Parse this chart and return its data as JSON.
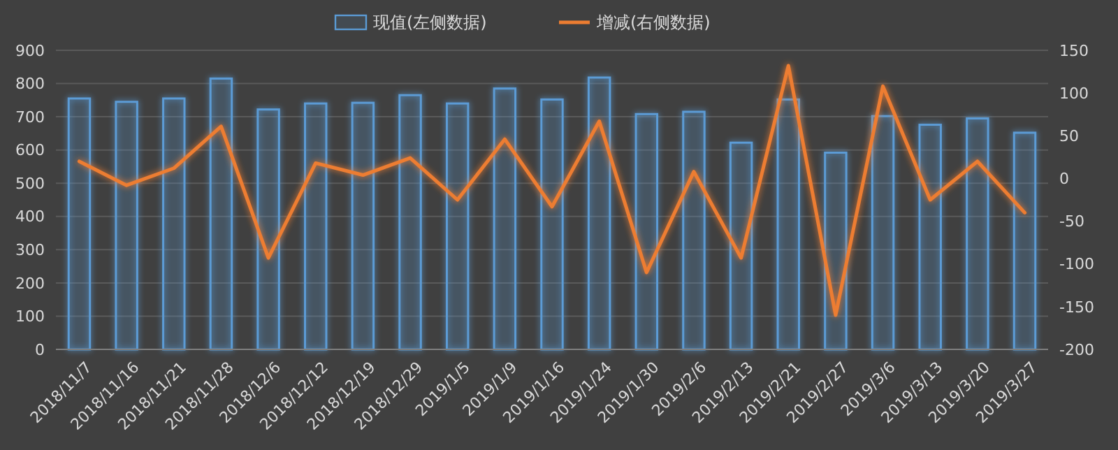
{
  "chart_data": {
    "type": "bar",
    "categories": [
      "2018/11/7",
      "2018/11/16",
      "2018/11/21",
      "2018/11/28",
      "2018/12/6",
      "2018/12/12",
      "2018/12/19",
      "2018/12/29",
      "2019/1/5",
      "2019/1/9",
      "2019/1/16",
      "2019/1/24",
      "2019/1/30",
      "2019/2/6",
      "2019/2/13",
      "2019/2/21",
      "2019/2/27",
      "2019/3/6",
      "2019/3/13",
      "2019/3/20",
      "2019/3/27"
    ],
    "series": [
      {
        "name": "现值(左侧数据)",
        "color": "#5b9bd5",
        "values": [
          755,
          745,
          755,
          815,
          722,
          740,
          742,
          765,
          740,
          785,
          752,
          818,
          708,
          715,
          622,
          752,
          592,
          702,
          676,
          695,
          652
        ]
      },
      {
        "name": "增减(右侧数据)",
        "type": "line",
        "axis": "y2",
        "color": "#ed7d31",
        "values": [
          20,
          -8,
          12,
          61,
          -93,
          18,
          4,
          24,
          -25,
          46,
          -33,
          67,
          -110,
          8,
          -93,
          132,
          -160,
          108,
          -25,
          20,
          -40
        ]
      }
    ],
    "ylim": [
      0,
      900
    ],
    "yticks": [
      0,
      100,
      200,
      300,
      400,
      500,
      600,
      700,
      800,
      900
    ],
    "y2lim": [
      -200,
      150
    ],
    "y2ticks": [
      -200,
      -150,
      -100,
      -50,
      0,
      50,
      100,
      150
    ],
    "grid": "y",
    "legend": "top",
    "line_style": "solid",
    "marker": "none"
  }
}
